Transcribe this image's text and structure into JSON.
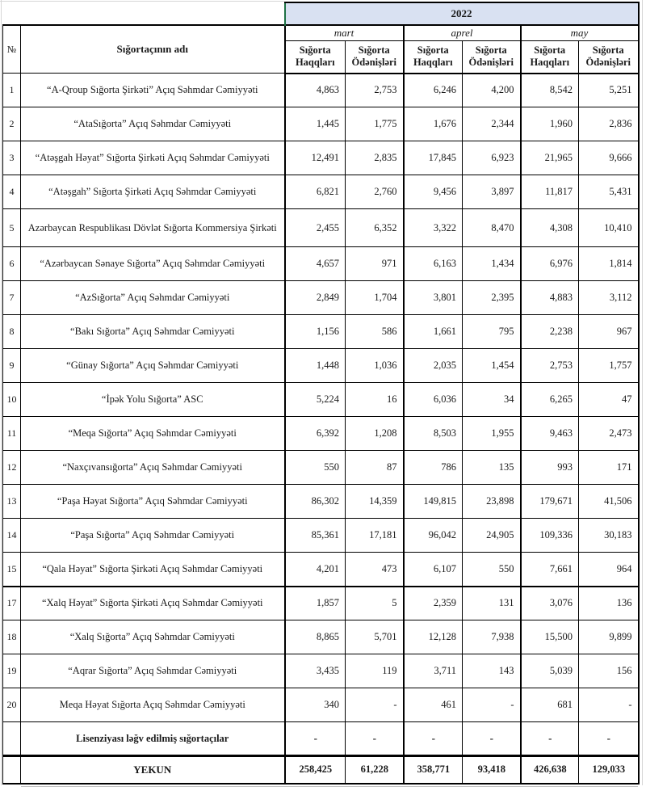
{
  "header": {
    "year": "2022",
    "number_col": "№",
    "name_col": "Sığortaçının adı",
    "months": [
      "mart",
      "aprel",
      "may"
    ],
    "sub_premium": "Sığorta Haqqları",
    "sub_claims": "Sığorta Ödənişləri"
  },
  "rows": [
    {
      "no": "1",
      "name": "“A-Qroup Sığorta Şirkəti” Açıq Səhmdar Cəmiyyəti",
      "values": [
        "4,863",
        "2,753",
        "6,246",
        "4,200",
        "8,542",
        "5,251"
      ]
    },
    {
      "no": "2",
      "name": "“AtaSığorta” Açıq Səhmdar Cəmiyyəti",
      "values": [
        "1,445",
        "1,775",
        "1,676",
        "2,344",
        "1,960",
        "2,836"
      ]
    },
    {
      "no": "3",
      "name": "“Atəşgah Həyat” Sığorta Şirkəti Açıq Səhmdar Cəmiyyəti",
      "values": [
        "12,491",
        "2,835",
        "17,845",
        "6,923",
        "21,965",
        "9,666"
      ]
    },
    {
      "no": "4",
      "name": "“Atəşgah” Sığorta Şirkəti Açıq Səhmdar Cəmiyyəti",
      "values": [
        "6,821",
        "2,760",
        "9,456",
        "3,897",
        "11,817",
        "5,431"
      ]
    },
    {
      "no": "5",
      "name": "Azərbaycan Respublikası Dövlət Sığorta Kommersiya Şirkəti",
      "values": [
        "2,455",
        "6,352",
        "3,322",
        "8,470",
        "4,308",
        "10,410"
      ]
    },
    {
      "no": "6",
      "name": "“Azərbaycan Sənaye Sığorta” Açıq Səhmdar Cəmiyyəti",
      "values": [
        "4,657",
        "971",
        "6,163",
        "1,434",
        "6,976",
        "1,814"
      ]
    },
    {
      "no": "7",
      "name": "“AzSığorta” Açıq Səhmdar Cəmiyyəti",
      "values": [
        "2,849",
        "1,704",
        "3,801",
        "2,395",
        "4,883",
        "3,112"
      ]
    },
    {
      "no": "8",
      "name": "“Bakı Sığorta” Açıq Səhmdar Cəmiyyəti",
      "values": [
        "1,156",
        "586",
        "1,661",
        "795",
        "2,238",
        "967"
      ]
    },
    {
      "no": "9",
      "name": "“Günay Sığorta” Açıq Səhmdar Cəmiyyəti",
      "values": [
        "1,448",
        "1,036",
        "2,035",
        "1,454",
        "2,753",
        "1,757"
      ]
    },
    {
      "no": "10",
      "name": "“İpək Yolu Sığorta” ASC",
      "values": [
        "5,224",
        "16",
        "6,036",
        "34",
        "6,265",
        "47"
      ]
    },
    {
      "no": "11",
      "name": "“Meqa Sığorta” Açıq Səhmdar Cəmiyyəti",
      "values": [
        "6,392",
        "1,208",
        "8,503",
        "1,955",
        "9,463",
        "2,473"
      ]
    },
    {
      "no": "12",
      "name": "“Naxçıvansığorta” Açıq Səhmdar Cəmiyyəti",
      "values": [
        "550",
        "87",
        "786",
        "135",
        "993",
        "171"
      ]
    },
    {
      "no": "13",
      "name": "“Paşa Həyat Sığorta” Açıq Səhmdar Cəmiyyəti",
      "values": [
        "86,302",
        "14,359",
        "149,815",
        "23,898",
        "179,671",
        "41,506"
      ]
    },
    {
      "no": "14",
      "name": "“Paşa Sığorta” Açıq Səhmdar Cəmiyyəti",
      "values": [
        "85,361",
        "17,181",
        "96,042",
        "24,905",
        "109,336",
        "30,183"
      ]
    },
    {
      "no": "15",
      "name": "“Qala Həyat” Sığorta Şirkəti Açıq Səhmdar Cəmiyyəti",
      "values": [
        "4,201",
        "473",
        "6,107",
        "550",
        "7,661",
        "964"
      ]
    },
    {
      "no": "17",
      "name": "“Xalq Həyat” Sığorta Şirkəti Açıq Səhmdar Cəmiyyəti",
      "values": [
        "1,857",
        "5",
        "2,359",
        "131",
        "3,076",
        "136"
      ]
    },
    {
      "no": "18",
      "name": "“Xalq Sığorta” Açıq Səhmdar Cəmiyyəti",
      "values": [
        "8,865",
        "5,701",
        "12,128",
        "7,938",
        "15,500",
        "9,899"
      ]
    },
    {
      "no": "19",
      "name": "“Aqrar Sığorta” Açıq Səhmdar Cəmiyyəti",
      "values": [
        "3,435",
        "119",
        "3,711",
        "143",
        "5,039",
        "156"
      ]
    },
    {
      "no": "20",
      "name": "Meqa Həyat Sığorta Açıq Səhmdar Cəmiyyəti",
      "values": [
        "340",
        "-",
        "461",
        "-",
        "681",
        "-"
      ]
    }
  ],
  "footer": {
    "cancelled_label": "Lisenziyası ləğv edilmiş sığortaçılar",
    "cancelled_values": [
      "-",
      "-",
      "-",
      "-",
      "-",
      "-"
    ],
    "total_label": "YEKUN",
    "total_values": [
      "258,425",
      "61,228",
      "358,771",
      "93,418",
      "426,638",
      "129,033"
    ]
  },
  "colors": {
    "year_header_bg": "#d9e1f2",
    "accent_green": "#1e7145",
    "border": "#000000"
  }
}
